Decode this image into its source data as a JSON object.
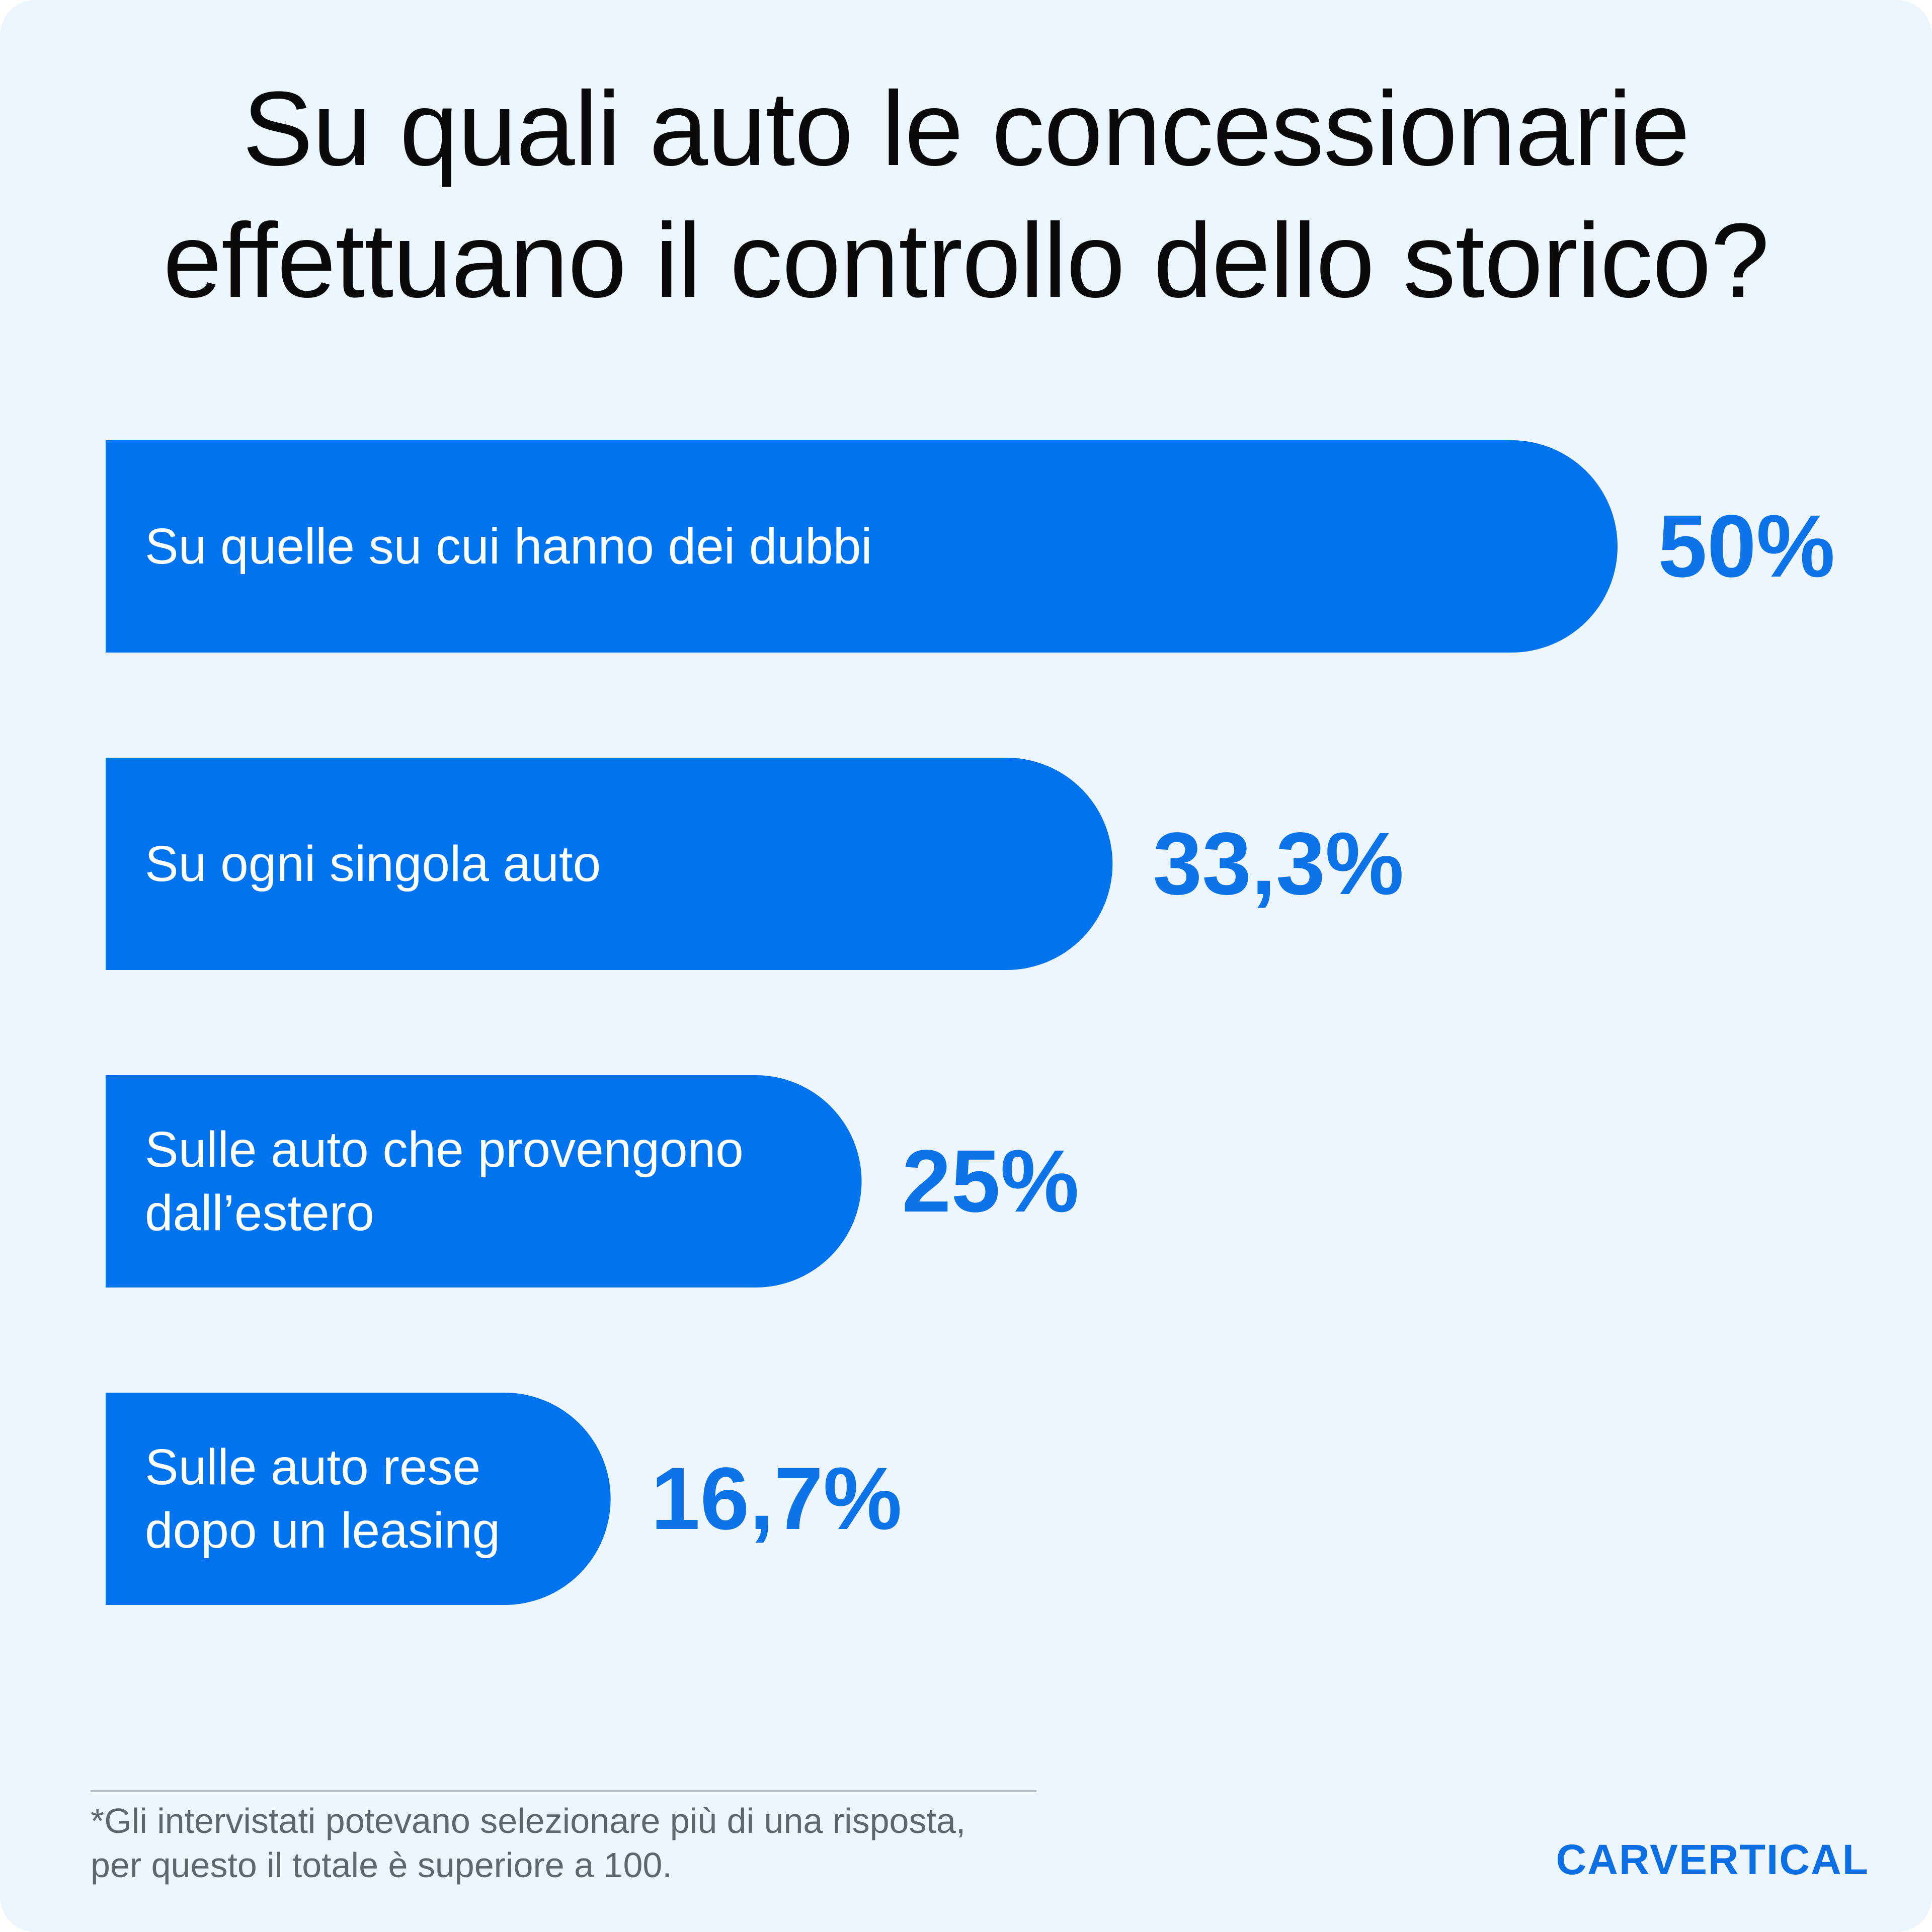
{
  "title_lines": [
    "Su quali auto le concessionarie",
    "effettuano il controllo dello storico?"
  ],
  "colors": {
    "background": "#eef6fd",
    "bar": "#0073ee",
    "value_text": "#0c73e8",
    "title_text": "#0a0a0a"
  },
  "chart_data": {
    "type": "bar",
    "orientation": "horizontal",
    "categories": [
      "Su quelle su cui hanno dei dubbi",
      "Su ogni singola auto",
      "Sulle auto che provengono dall’estero",
      "Sulle auto rese dopo un leasing"
    ],
    "category_lines": [
      [
        "Su quelle su cui hanno dei dubbi"
      ],
      [
        "Su ogni singola auto"
      ],
      [
        "Sulle auto che provengono",
        "dall’estero"
      ],
      [
        "Sulle auto rese",
        "dopo un leasing"
      ]
    ],
    "values": [
      50,
      33.3,
      25,
      16.7
    ],
    "value_labels": [
      "50%",
      "33,3%",
      "25%",
      "16,7%"
    ],
    "xlim": [
      0,
      50
    ],
    "grid": false,
    "legend": false
  },
  "footnote": {
    "lines": [
      "*Gli intervistati potevano selezionare più di una risposta,",
      "per questo il totale è superiore a 100."
    ]
  },
  "brand": "CARVERTICAL"
}
